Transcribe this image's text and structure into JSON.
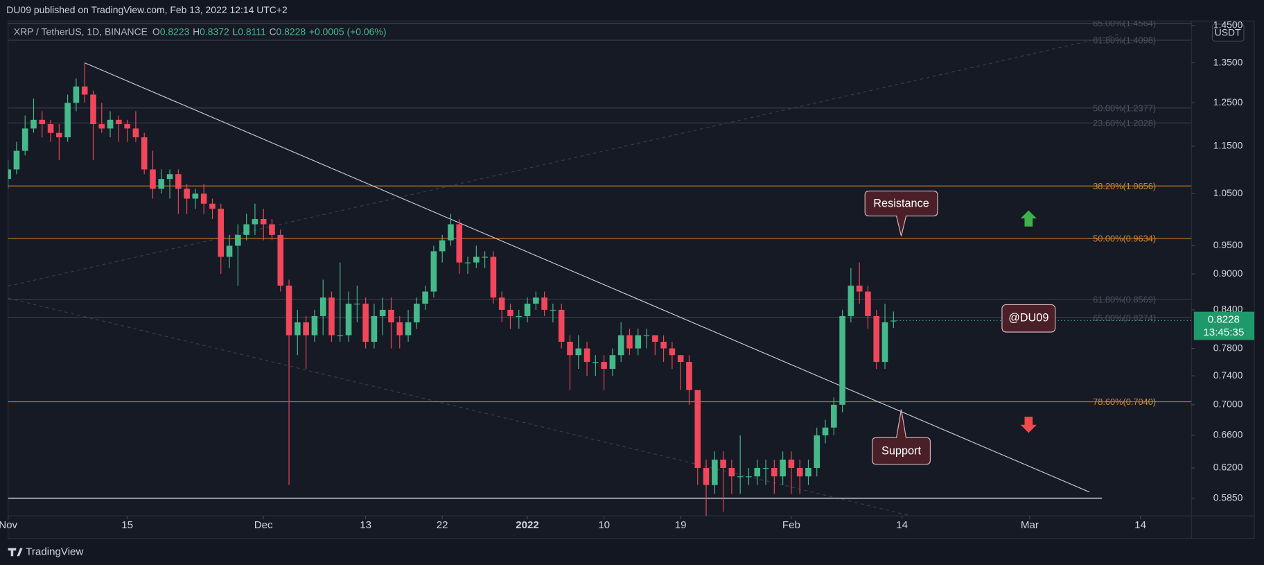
{
  "header": "DU09 published on TradingView.com, Feb 13, 2022 12:14 UTC+2",
  "footer": "TradingView",
  "chart_data": {
    "type": "candlestick",
    "title": "XRP / TetherUS, 1D, BINANCE",
    "ohlc_letters": [
      "O",
      "H",
      "L",
      "C"
    ],
    "ohlc_values": [
      0.8223,
      0.8372,
      0.8111,
      0.8228
    ],
    "change": "+0.0005 (+0.06%)",
    "currency": "USDT",
    "last_price": 0.8228,
    "countdown": "13:45:35",
    "up_color": "#45b98a",
    "down_color": "#f0475a",
    "log_scale": true,
    "grid": false,
    "xlim": [
      "2021-11-01",
      "2022-03-20"
    ],
    "ylim": [
      0.5655,
      1.463
    ],
    "xticks": [
      {
        "value": "2021-11-01",
        "label": "Nov"
      },
      {
        "value": "2021-11-15",
        "label": "15"
      },
      {
        "value": "2021-12-01",
        "label": "Dec"
      },
      {
        "value": "2021-12-13",
        "label": "13"
      },
      {
        "value": "2021-12-22",
        "label": "22"
      },
      {
        "value": "2022-01-01",
        "label": "2022"
      },
      {
        "value": "2022-01-10",
        "label": "10"
      },
      {
        "value": "2022-01-19",
        "label": "19"
      },
      {
        "value": "2022-02-01",
        "label": "Feb"
      },
      {
        "value": "2022-02-14",
        "label": "14"
      },
      {
        "value": "2022-03-01",
        "label": "Mar"
      },
      {
        "value": "2022-03-14",
        "label": "14"
      }
    ],
    "yticks": [
      {
        "value": 1.45,
        "label": "1.4500"
      },
      {
        "value": 1.35,
        "label": "1.3500"
      },
      {
        "value": 1.25,
        "label": "1.2500"
      },
      {
        "value": 1.15,
        "label": "1.1500"
      },
      {
        "value": 1.05,
        "label": "1.0500"
      },
      {
        "value": 0.95,
        "label": "0.9500"
      },
      {
        "value": 0.9,
        "label": "0.9000"
      },
      {
        "value": 0.84,
        "label": "0.8400"
      },
      {
        "value": 0.78,
        "label": "0.7800"
      },
      {
        "value": 0.74,
        "label": "0.7400"
      },
      {
        "value": 0.7,
        "label": "0.7000"
      },
      {
        "value": 0.66,
        "label": "0.6600"
      },
      {
        "value": 0.62,
        "label": "0.6200"
      },
      {
        "value": 0.585,
        "label": "0.5850"
      }
    ],
    "x": [
      "2021-11-01",
      "2021-11-02",
      "2021-11-03",
      "2021-11-04",
      "2021-11-05",
      "2021-11-06",
      "2021-11-07",
      "2021-11-08",
      "2021-11-09",
      "2021-11-10",
      "2021-11-11",
      "2021-11-12",
      "2021-11-13",
      "2021-11-14",
      "2021-11-15",
      "2021-11-16",
      "2021-11-17",
      "2021-11-18",
      "2021-11-19",
      "2021-11-20",
      "2021-11-21",
      "2021-11-22",
      "2021-11-23",
      "2021-11-24",
      "2021-11-25",
      "2021-11-26",
      "2021-11-27",
      "2021-11-28",
      "2021-11-29",
      "2021-11-30",
      "2021-12-01",
      "2021-12-02",
      "2021-12-03",
      "2021-12-04",
      "2021-12-05",
      "2021-12-06",
      "2021-12-07",
      "2021-12-08",
      "2021-12-09",
      "2021-12-10",
      "2021-12-11",
      "2021-12-12",
      "2021-12-13",
      "2021-12-14",
      "2021-12-15",
      "2021-12-16",
      "2021-12-17",
      "2021-12-18",
      "2021-12-19",
      "2021-12-20",
      "2021-12-21",
      "2021-12-22",
      "2021-12-23",
      "2021-12-24",
      "2021-12-25",
      "2021-12-26",
      "2021-12-27",
      "2021-12-28",
      "2021-12-29",
      "2021-12-30",
      "2021-12-31",
      "2022-01-01",
      "2022-01-02",
      "2022-01-03",
      "2022-01-04",
      "2022-01-05",
      "2022-01-06",
      "2022-01-07",
      "2022-01-08",
      "2022-01-09",
      "2022-01-10",
      "2022-01-11",
      "2022-01-12",
      "2022-01-13",
      "2022-01-14",
      "2022-01-15",
      "2022-01-16",
      "2022-01-17",
      "2022-01-18",
      "2022-01-19",
      "2022-01-20",
      "2022-01-21",
      "2022-01-22",
      "2022-01-23",
      "2022-01-24",
      "2022-01-25",
      "2022-01-26",
      "2022-01-27",
      "2022-01-28",
      "2022-01-29",
      "2022-01-30",
      "2022-01-31",
      "2022-02-01",
      "2022-02-02",
      "2022-02-03",
      "2022-02-04",
      "2022-02-05",
      "2022-02-06",
      "2022-02-07",
      "2022-02-08",
      "2022-02-09",
      "2022-02-10",
      "2022-02-11",
      "2022-02-12",
      "2022-02-13"
    ],
    "open": [
      1.08,
      1.1,
      1.14,
      1.19,
      1.21,
      1.2,
      1.18,
      1.17,
      1.25,
      1.29,
      1.27,
      1.2,
      1.19,
      1.21,
      1.2,
      1.19,
      1.17,
      1.1,
      1.06,
      1.08,
      1.09,
      1.06,
      1.04,
      1.05,
      1.03,
      1.02,
      0.93,
      0.95,
      0.97,
      0.99,
      1.0,
      0.99,
      0.97,
      0.88,
      0.8,
      0.82,
      0.8,
      0.83,
      0.86,
      0.8,
      0.8,
      0.85,
      0.85,
      0.79,
      0.83,
      0.84,
      0.82,
      0.8,
      0.82,
      0.85,
      0.87,
      0.94,
      0.96,
      0.99,
      0.92,
      0.92,
      0.93,
      0.93,
      0.86,
      0.84,
      0.83,
      0.83,
      0.85,
      0.86,
      0.84,
      0.84,
      0.79,
      0.77,
      0.78,
      0.76,
      0.76,
      0.75,
      0.77,
      0.8,
      0.78,
      0.8,
      0.8,
      0.79,
      0.78,
      0.77,
      0.76,
      0.72,
      0.62,
      0.6,
      0.63,
      0.62,
      0.61,
      0.61,
      0.61,
      0.62,
      0.62,
      0.61,
      0.63,
      0.62,
      0.61,
      0.62,
      0.66,
      0.67,
      0.7,
      0.83,
      0.88,
      0.87,
      0.83,
      0.76,
      0.8223
    ],
    "high": [
      1.12,
      1.16,
      1.22,
      1.26,
      1.23,
      1.21,
      1.2,
      1.27,
      1.31,
      1.35,
      1.28,
      1.25,
      1.23,
      1.22,
      1.21,
      1.23,
      1.18,
      1.14,
      1.1,
      1.1,
      1.1,
      1.07,
      1.06,
      1.07,
      1.04,
      1.03,
      0.97,
      0.99,
      1.01,
      1.03,
      1.02,
      1.0,
      0.98,
      0.89,
      0.84,
      0.83,
      0.84,
      0.89,
      0.87,
      0.92,
      0.87,
      0.88,
      0.86,
      0.85,
      0.86,
      0.86,
      0.83,
      0.84,
      0.86,
      0.88,
      0.95,
      0.97,
      1.01,
      1.0,
      0.93,
      0.95,
      0.94,
      0.94,
      0.87,
      0.85,
      0.84,
      0.86,
      0.87,
      0.87,
      0.85,
      0.85,
      0.8,
      0.8,
      0.79,
      0.77,
      0.77,
      0.78,
      0.82,
      0.81,
      0.81,
      0.81,
      0.8,
      0.8,
      0.79,
      0.77,
      0.77,
      0.72,
      0.63,
      0.64,
      0.64,
      0.63,
      0.66,
      0.62,
      0.63,
      0.63,
      0.63,
      0.64,
      0.64,
      0.63,
      0.63,
      0.67,
      0.68,
      0.71,
      0.84,
      0.91,
      0.92,
      0.88,
      0.84,
      0.85,
      0.8372
    ],
    "low": [
      1.06,
      1.09,
      1.13,
      1.18,
      1.17,
      1.16,
      1.12,
      1.16,
      1.23,
      1.25,
      1.12,
      1.18,
      1.17,
      1.16,
      1.16,
      1.16,
      1.09,
      1.04,
      1.05,
      1.04,
      1.01,
      1.01,
      1.02,
      1.01,
      1.0,
      0.9,
      0.91,
      0.88,
      0.96,
      0.97,
      0.96,
      0.96,
      0.87,
      0.6,
      0.77,
      0.75,
      0.79,
      0.8,
      0.79,
      0.79,
      0.79,
      0.82,
      0.78,
      0.78,
      0.8,
      0.78,
      0.78,
      0.79,
      0.81,
      0.84,
      0.86,
      0.92,
      0.95,
      0.9,
      0.9,
      0.91,
      0.91,
      0.85,
      0.82,
      0.81,
      0.81,
      0.82,
      0.84,
      0.83,
      0.82,
      0.78,
      0.72,
      0.75,
      0.74,
      0.74,
      0.72,
      0.74,
      0.76,
      0.77,
      0.77,
      0.78,
      0.77,
      0.76,
      0.75,
      0.72,
      0.7,
      0.6,
      0.565,
      0.59,
      0.57,
      0.59,
      0.59,
      0.6,
      0.6,
      0.6,
      0.59,
      0.6,
      0.59,
      0.59,
      0.6,
      0.61,
      0.65,
      0.66,
      0.69,
      0.82,
      0.85,
      0.81,
      0.75,
      0.75,
      0.8111
    ],
    "close": [
      1.1,
      1.14,
      1.19,
      1.21,
      1.2,
      1.18,
      1.17,
      1.25,
      1.29,
      1.27,
      1.2,
      1.19,
      1.21,
      1.2,
      1.19,
      1.17,
      1.1,
      1.06,
      1.08,
      1.09,
      1.06,
      1.04,
      1.05,
      1.03,
      1.02,
      0.93,
      0.95,
      0.97,
      0.99,
      1.0,
      0.99,
      0.97,
      0.88,
      0.8,
      0.82,
      0.8,
      0.83,
      0.86,
      0.8,
      0.8,
      0.85,
      0.85,
      0.79,
      0.83,
      0.84,
      0.82,
      0.8,
      0.82,
      0.85,
      0.87,
      0.94,
      0.96,
      0.99,
      0.92,
      0.92,
      0.93,
      0.93,
      0.86,
      0.84,
      0.83,
      0.83,
      0.85,
      0.86,
      0.84,
      0.84,
      0.79,
      0.77,
      0.78,
      0.76,
      0.76,
      0.75,
      0.77,
      0.8,
      0.78,
      0.8,
      0.8,
      0.79,
      0.78,
      0.77,
      0.76,
      0.72,
      0.62,
      0.6,
      0.63,
      0.62,
      0.61,
      0.61,
      0.61,
      0.62,
      0.62,
      0.61,
      0.63,
      0.62,
      0.61,
      0.62,
      0.66,
      0.67,
      0.7,
      0.83,
      0.88,
      0.87,
      0.83,
      0.76,
      0.82,
      0.8228
    ],
    "fib_levels": [
      {
        "value": 1.4564,
        "label": "65.00%(1.4564)",
        "color": "#3b3f4a"
      },
      {
        "value": 1.4098,
        "label": "61.80%(1.4098)",
        "color": "#3b3f4a"
      },
      {
        "value": 1.2377,
        "label": "50.00%(1.2377)",
        "color": "#3b3f4a"
      },
      {
        "value": 1.2028,
        "label": "23.60%(1.2028)",
        "color": "#3b3f4a"
      },
      {
        "value": 1.0656,
        "label": "38.20%(1.0656)",
        "color": "#c9791f"
      },
      {
        "value": 0.9634,
        "label": "50.00%(0.9634)",
        "color": "#c9791f"
      },
      {
        "value": 0.8569,
        "label": "61.80%(0.8569)",
        "color": "#3b3f4a"
      },
      {
        "value": 0.8274,
        "label": "65.00%(0.8274)",
        "color": "#3b3f4a"
      },
      {
        "value": 0.704,
        "label": "78.60%(0.7040)",
        "color": "#c9791f"
      }
    ],
    "horizontal_line": 0.585,
    "trend_line": {
      "x": [
        "2021-11-10",
        "2022-03-08"
      ],
      "y": [
        1.35,
        0.592
      ]
    },
    "annotations": [
      "Resistance",
      "Support",
      "@DU09"
    ]
  }
}
